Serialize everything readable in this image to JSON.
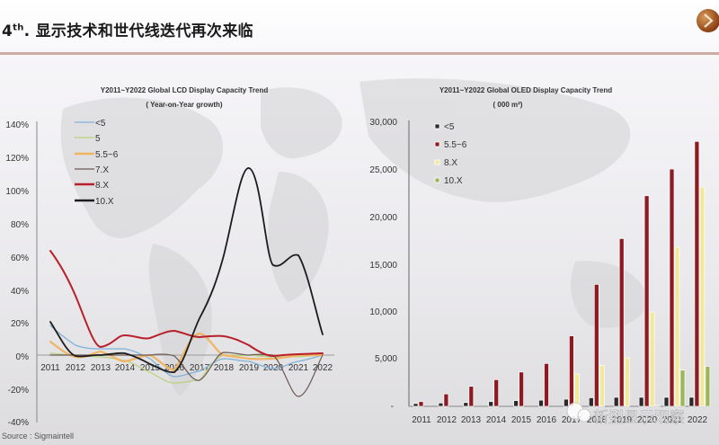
{
  "header": {
    "title_prefix": "4",
    "title_sup": "th",
    "title_text": ". 显示技术和世代线迭代再次来临",
    "logo": "sigma-logo-icon"
  },
  "source": "Source : Sigmaintell",
  "watermark": "新型显示观察",
  "chart_data": [
    {
      "type": "line",
      "title": "Y2011~Y2022 Global LCD Display Capacity Trend",
      "subtitle": "( Year-on-Year growth)",
      "xlabel": "",
      "ylabel": "",
      "categories": [
        "2011",
        "2012",
        "2013",
        "2014",
        "2015",
        "2016",
        "2017",
        "2018",
        "2019",
        "2020",
        "2021",
        "2022"
      ],
      "y_ticks": [
        "140%",
        "120%",
        "100%",
        "80%",
        "60%",
        "40%",
        "20%",
        "0%",
        "-20%",
        "-40%"
      ],
      "ylim": [
        -40,
        140
      ],
      "grid": false,
      "legend_position": "upper-left",
      "series": [
        {
          "name": "<5",
          "color": "#7fb2d8",
          "values": [
            18,
            6,
            4,
            4,
            -2,
            -13,
            -10,
            -2,
            -4,
            -8,
            -4,
            0
          ]
        },
        {
          "name": "5",
          "color": "#b8d27a",
          "values": [
            1,
            0,
            -1,
            -3,
            -10,
            -17,
            -15,
            0,
            0,
            -1,
            -1,
            0
          ]
        },
        {
          "name": "5.5~6",
          "color": "#f0b465",
          "values": [
            8,
            -1,
            2,
            -4,
            0,
            -9,
            13,
            0,
            -2,
            -2,
            0,
            0
          ]
        },
        {
          "name": "7.X",
          "color": "#6b5a55",
          "values": [
            0,
            0,
            0,
            0,
            0,
            0,
            -15,
            0,
            0,
            0,
            -25,
            0
          ]
        },
        {
          "name": "8.X",
          "color": "#c0262c",
          "values": [
            63,
            35,
            5,
            12,
            10,
            15,
            11,
            12,
            7,
            0,
            0,
            1
          ]
        },
        {
          "name": "10.X",
          "color": "#1c1c1c",
          "values": [
            20,
            -1,
            0,
            0,
            -7,
            -10,
            22,
            60,
            114,
            55,
            61,
            12
          ]
        }
      ]
    },
    {
      "type": "bar",
      "title": "Y2011~Y2022 Global OLED Display Capacity Trend",
      "subtitle": "( 000 m²)",
      "xlabel": "",
      "ylabel": "",
      "categories": [
        "2011",
        "2012",
        "2013",
        "2014",
        "2015",
        "2016",
        "2017",
        "2018",
        "2019",
        "2020",
        "2021",
        "2022"
      ],
      "y_ticks": [
        "30,000",
        "25,000",
        "20,000",
        "15,000",
        "10,000",
        "5,000",
        "-"
      ],
      "ylim": [
        0,
        30000
      ],
      "grid": false,
      "legend_position": "upper-left",
      "series": [
        {
          "name": "<5",
          "color": "#2a2a2a",
          "values": [
            300,
            350,
            400,
            500,
            600,
            650,
            750,
            900,
            950,
            950,
            950,
            950
          ]
        },
        {
          "name": "5.5~6",
          "color": "#8c1a22",
          "values": [
            500,
            1300,
            2100,
            2800,
            3600,
            4500,
            7400,
            12800,
            17600,
            22100,
            24900,
            27800
          ]
        },
        {
          "name": "8.X",
          "color": "#f3e79a",
          "values": [
            0,
            0,
            0,
            0,
            0,
            0,
            3400,
            4300,
            5100,
            9900,
            16700,
            23000
          ]
        },
        {
          "name": "10.X",
          "color": "#9bb55a",
          "values": [
            0,
            0,
            0,
            0,
            0,
            0,
            0,
            0,
            0,
            100,
            3800,
            4200
          ]
        }
      ]
    }
  ]
}
